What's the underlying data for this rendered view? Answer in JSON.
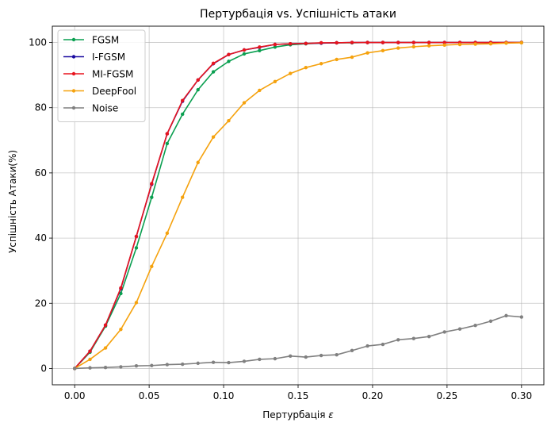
{
  "chart_data": {
    "type": "line",
    "title": "Пертурбація vs. Успішність атаки",
    "xlabel": "Пертурбація",
    "xlabel_symbol": "ε",
    "ylabel": "Успішність Атаки(%)",
    "xlim": [
      -0.015,
      0.315
    ],
    "ylim": [
      -5,
      105
    ],
    "xticks": [
      0.0,
      0.05,
      0.1,
      0.15,
      0.2,
      0.25,
      0.3
    ],
    "xtick_labels": [
      "0.00",
      "0.05",
      "0.10",
      "0.15",
      "0.20",
      "0.25",
      "0.30"
    ],
    "yticks": [
      0,
      20,
      40,
      60,
      80,
      100
    ],
    "ytick_labels": [
      "0",
      "20",
      "40",
      "60",
      "80",
      "100"
    ],
    "grid": true,
    "legend_position": "top-left",
    "x": [
      0.0,
      0.0103,
      0.0207,
      0.031,
      0.0414,
      0.0517,
      0.0621,
      0.0724,
      0.0828,
      0.0931,
      0.1034,
      0.1138,
      0.1241,
      0.1345,
      0.1448,
      0.1552,
      0.1655,
      0.1759,
      0.1862,
      0.1966,
      0.2069,
      0.2172,
      0.2276,
      0.2379,
      0.2483,
      0.2586,
      0.269,
      0.2793,
      0.2897,
      0.3
    ],
    "series": [
      {
        "name": "FGSM",
        "color": "#0a9f50",
        "values": [
          0,
          5,
          13,
          23,
          37,
          52.5,
          69,
          78,
          85.5,
          91,
          94.2,
          96.5,
          97.5,
          98.6,
          99.3,
          99.6,
          99.8,
          99.9,
          99.9,
          100,
          100,
          100,
          100,
          100,
          100,
          100,
          100,
          100,
          100,
          100
        ]
      },
      {
        "name": "I-FGSM",
        "color": "#1a0aa0",
        "values": [
          0,
          5.3,
          13.3,
          24.5,
          40.5,
          56.5,
          72,
          82,
          88.5,
          93.5,
          96.3,
          97.7,
          98.5,
          99.4,
          99.6,
          99.7,
          99.8,
          99.9,
          100,
          100,
          100,
          100,
          100,
          100,
          100,
          100,
          100,
          100,
          100,
          100
        ]
      },
      {
        "name": "MI-FGSM",
        "color": "#e8141e",
        "values": [
          0,
          5.3,
          13.3,
          24.7,
          40.5,
          56.7,
          72,
          82.2,
          88.5,
          93.6,
          96.3,
          97.7,
          98.6,
          99.4,
          99.6,
          99.7,
          99.9,
          99.9,
          100,
          100,
          100,
          100,
          100,
          100,
          100,
          100,
          100,
          100,
          100,
          100
        ]
      },
      {
        "name": "DeepFool",
        "color": "#f5a20e",
        "values": [
          0,
          2.8,
          6.3,
          12,
          20.2,
          31.3,
          41.5,
          52.5,
          63.2,
          71,
          76,
          81.5,
          85.3,
          88,
          90.5,
          92.3,
          93.5,
          94.8,
          95.5,
          96.8,
          97.5,
          98.3,
          98.7,
          99,
          99.2,
          99.4,
          99.5,
          99.6,
          99.8,
          99.9
        ]
      },
      {
        "name": "Noise",
        "color": "#808080",
        "values": [
          0,
          0.2,
          0.3,
          0.5,
          0.8,
          0.9,
          1.2,
          1.3,
          1.6,
          1.9,
          1.8,
          2.2,
          2.8,
          3.0,
          3.8,
          3.5,
          4.0,
          4.2,
          5.5,
          6.9,
          7.4,
          8.8,
          9.2,
          9.8,
          11.2,
          12.1,
          13.2,
          14.5,
          16.2,
          15.8
        ]
      }
    ]
  }
}
